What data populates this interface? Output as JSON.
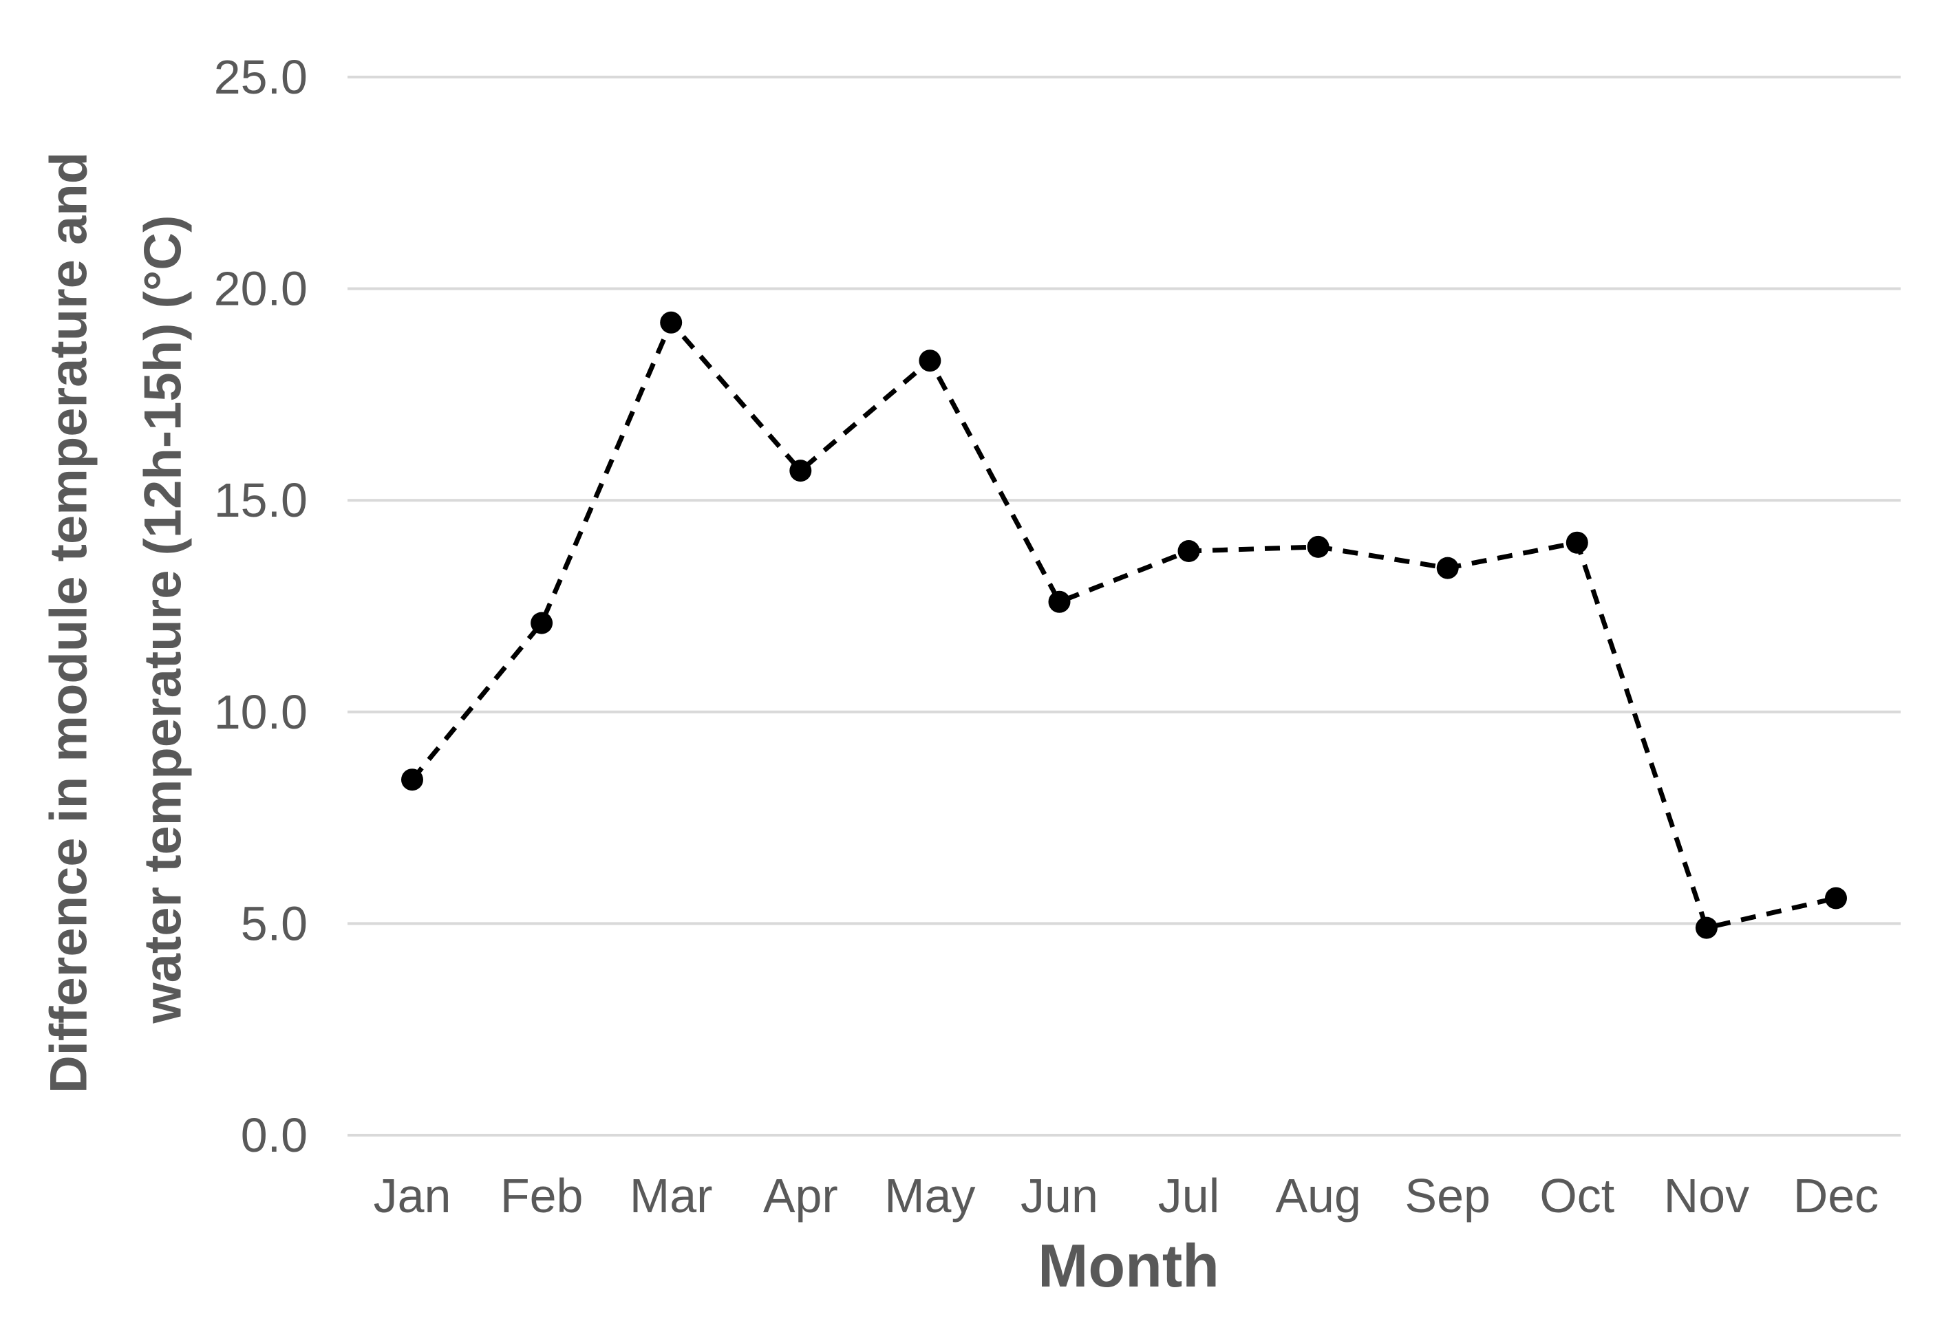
{
  "chart_data": {
    "type": "line",
    "categories": [
      "Jan",
      "Feb",
      "Mar",
      "Apr",
      "May",
      "Jun",
      "Jul",
      "Aug",
      "Sep",
      "Oct",
      "Nov",
      "Dec"
    ],
    "values": [
      8.4,
      12.1,
      19.2,
      15.7,
      18.3,
      12.6,
      13.8,
      13.9,
      13.4,
      14.0,
      4.9,
      5.6
    ],
    "series_name": "Difference in module temperature and water temperature (12h-15h)",
    "xlabel": "Month",
    "ylabel": "Difference in module temperature and water temperature (12h-15h) (°C)",
    "ylabel_line1": "Difference in module temperature and",
    "ylabel_line2": "water temperature (12h-15h) (°C)",
    "ylim": [
      0.0,
      25.0
    ],
    "yticks": [
      0,
      5,
      10,
      15,
      20,
      25
    ],
    "ytick_labels": [
      "0.0",
      "5.0",
      "10.0",
      "15.0",
      "20.0",
      "25.0"
    ],
    "grid": "horizontal",
    "legend": "none",
    "line_style": "dashed",
    "marker": "filled-circle",
    "colors": {
      "line": "#000000",
      "marker": "#000000",
      "grid": "#d9d9d9",
      "text": "#595959",
      "background": "#ffffff"
    }
  }
}
